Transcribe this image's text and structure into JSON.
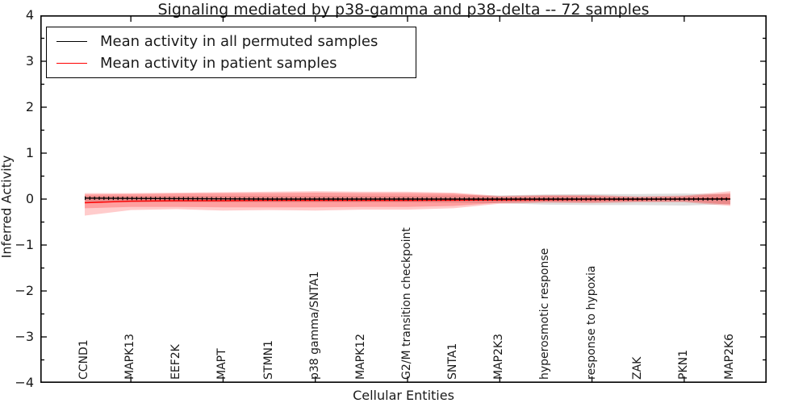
{
  "title": "Signaling mediated by p38-gamma and p38-delta -- 72 samples",
  "legend": {
    "items": [
      {
        "label": "Mean activity in all permuted samples",
        "color": "#000000"
      },
      {
        "label": "Mean activity in patient samples",
        "color": "#ff0000"
      }
    ]
  },
  "colors": {
    "background": "#ffffff",
    "axis": "#000000",
    "gray_band": "#000000",
    "red_band": "#ff0000"
  },
  "chart_data": {
    "type": "line",
    "title": "Signaling mediated by p38-gamma and p38-delta -- 72 samples",
    "xlabel": "Cellular Entities",
    "ylabel": "Inferred Activity",
    "ylim": [
      -4,
      4
    ],
    "yticks": [
      4,
      3,
      2,
      1,
      0,
      -1,
      -2,
      -3,
      -4
    ],
    "ytick_labels": [
      "4",
      "3",
      "2",
      "1",
      "0",
      "−1",
      "−2",
      "−3",
      "−4"
    ],
    "minor_ytick_step": 0.5,
    "grid": false,
    "legend_position": "upper left",
    "categories": [
      "CCND1",
      "MAPK13",
      "EEF2K",
      "MAPT",
      "STMN1",
      "p38 gamma/SNTA1",
      "MAPK12",
      "G2/M transition checkpoint",
      "SNTA1",
      "MAP2K3",
      "hyperosmotic response",
      "response to hypoxia",
      "ZAK",
      "PKN1",
      "MAP2K6"
    ],
    "x_ticks_at_indices": [
      1,
      3,
      5,
      7,
      9,
      11,
      13
    ],
    "series": [
      {
        "name": "Mean activity in all permuted samples",
        "color": "#000000",
        "marker": "+",
        "values": [
          0.02,
          0.015,
          0.01,
          0.005,
          0.0,
          0.0,
          0.0,
          0.0,
          0.0,
          0.0,
          0.0,
          0.0,
          0.0,
          0.0,
          0.0
        ]
      },
      {
        "name": "Mean activity in patient samples",
        "color": "#ff0000",
        "marker": null,
        "values": [
          -0.08,
          -0.045,
          -0.035,
          -0.035,
          -0.03,
          -0.03,
          -0.03,
          -0.03,
          -0.025,
          -0.02,
          -0.015,
          -0.01,
          -0.01,
          0.0,
          0.01
        ]
      }
    ],
    "bands": [
      {
        "name": "permuted-samples-band",
        "color": "#000000",
        "opacity": 0.13,
        "upper": [
          0.07,
          0.07,
          0.07,
          0.07,
          0.07,
          0.07,
          0.07,
          0.07,
          0.08,
          0.08,
          0.1,
          0.11,
          0.11,
          0.12,
          0.1
        ],
        "lower": [
          -0.07,
          -0.07,
          -0.07,
          -0.07,
          -0.07,
          -0.07,
          -0.07,
          -0.07,
          -0.08,
          -0.09,
          -0.12,
          -0.13,
          -0.13,
          -0.14,
          -0.11
        ]
      },
      {
        "name": "patient-samples-band-outer",
        "color": "#ff0000",
        "opacity": 0.2,
        "upper": [
          0.13,
          0.13,
          0.14,
          0.15,
          0.16,
          0.17,
          0.16,
          0.16,
          0.14,
          0.07,
          0.09,
          0.09,
          0.06,
          0.08,
          0.17
        ],
        "lower": [
          -0.36,
          -0.24,
          -0.22,
          -0.25,
          -0.24,
          -0.25,
          -0.23,
          -0.23,
          -0.2,
          -0.1,
          -0.08,
          -0.09,
          -0.07,
          -0.07,
          -0.15
        ]
      },
      {
        "name": "patient-samples-band-inner",
        "color": "#ff0000",
        "opacity": 0.22,
        "upper": [
          0.1,
          0.11,
          0.12,
          0.13,
          0.13,
          0.14,
          0.13,
          0.13,
          0.12,
          0.05,
          0.07,
          0.07,
          0.04,
          0.06,
          0.13
        ],
        "lower": [
          -0.2,
          -0.17,
          -0.17,
          -0.18,
          -0.18,
          -0.18,
          -0.17,
          -0.17,
          -0.15,
          -0.08,
          -0.06,
          -0.07,
          -0.05,
          -0.05,
          -0.12
        ]
      }
    ]
  }
}
